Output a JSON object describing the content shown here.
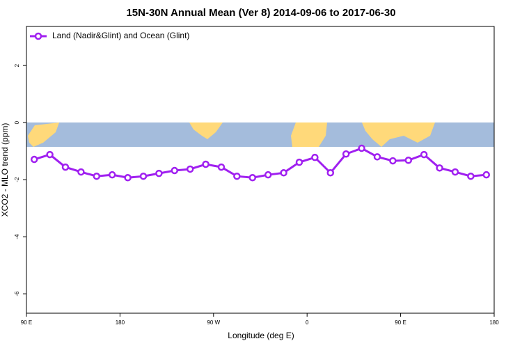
{
  "chart_data": {
    "type": "line",
    "title": "15N-30N Annual Mean (Ver 8)   2014-09-06 to 2017-06-30",
    "x_label": "Longitude (deg E)",
    "y_label": "XCO2 - MLO trend (ppm)",
    "x": [
      97.5,
      112.5,
      127.5,
      142.5,
      157.5,
      172.5,
      187.5,
      202.5,
      217.5,
      232.5,
      247.5,
      262.5,
      277.5,
      292.5,
      307.5,
      322.5,
      337.5,
      352.5,
      367.5,
      382.5,
      397.5,
      412.5,
      427.5,
      442.5,
      457.5,
      472.5,
      487.5,
      502.5,
      517.5,
      532.5
    ],
    "series": [
      {
        "name": "Land (Nadir&Glint) and Ocean (Glint)",
        "color": "#a020f0",
        "values": [
          -1.29,
          -1.12,
          -1.56,
          -1.73,
          -1.88,
          -1.83,
          -1.93,
          -1.88,
          -1.78,
          -1.68,
          -1.63,
          -1.46,
          -1.56,
          -1.88,
          -1.93,
          -1.83,
          -1.76,
          -1.39,
          -1.22,
          -1.76,
          -1.1,
          -0.9,
          -1.2,
          -1.34,
          -1.32,
          -1.12,
          -1.59,
          -1.73,
          -1.88,
          -1.83
        ]
      }
    ],
    "xlim": [
      90,
      540
    ],
    "xticks": [
      {
        "value": 90,
        "label": "90 E"
      },
      {
        "value": 180,
        "label": "180"
      },
      {
        "value": 270,
        "label": "90 W"
      },
      {
        "value": 360,
        "label": "0"
      },
      {
        "value": 450,
        "label": "90 E"
      },
      {
        "value": 540,
        "label": "180"
      }
    ],
    "ylim": [
      -6.68,
      3.37
    ],
    "yticks": [
      -6,
      -4,
      -2,
      0,
      2
    ],
    "legend": "top-left"
  }
}
